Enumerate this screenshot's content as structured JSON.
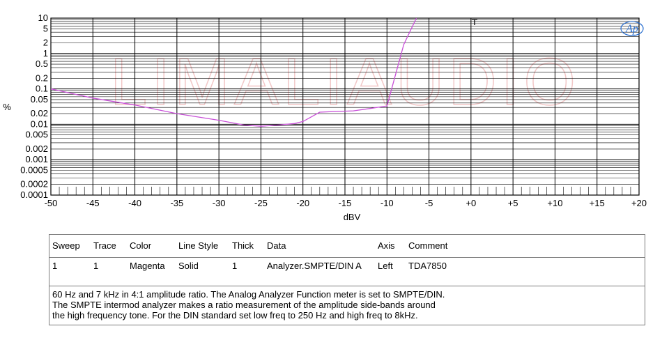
{
  "chart_data": {
    "type": "line",
    "xlabel": "dBV",
    "ylabel": "%",
    "y_scale": "log",
    "xlim": [
      -50,
      20
    ],
    "ylim": [
      0.0001,
      10
    ],
    "grid": true,
    "x_ticks": [
      "-50",
      "-45",
      "-40",
      "-35",
      "-30",
      "-25",
      "-20",
      "-15",
      "-10",
      "-5",
      "+0",
      "+5",
      "+10",
      "+15",
      "+20"
    ],
    "y_ticks": [
      "10",
      "5",
      "2",
      "1",
      "0.5",
      "0.2",
      "0.1",
      "0.05",
      "0.02",
      "0.01",
      "0.005",
      "0.002",
      "0.001",
      "0.0005",
      "0.0002",
      "0.0001"
    ],
    "watermark": "LIMALIAUDIO",
    "logo": "Ap",
    "series": [
      {
        "color": "#c84fd8",
        "x": [
          -50,
          -45,
          -40,
          -35,
          -30,
          -27,
          -25,
          -23,
          -21,
          -20,
          -18,
          -16,
          -14,
          -12,
          -10,
          -8,
          -6.5
        ],
        "y": [
          0.1,
          0.055,
          0.035,
          0.02,
          0.013,
          0.0095,
          0.0088,
          0.0095,
          0.0105,
          0.012,
          0.022,
          0.023,
          0.024,
          0.028,
          0.033,
          1.8,
          10
        ]
      }
    ]
  },
  "table": {
    "headers": [
      "Sweep",
      "Trace",
      "Color",
      "Line Style",
      "Thick",
      "Data",
      "Axis",
      "Comment"
    ],
    "row": [
      "1",
      "1",
      "Magenta",
      "Solid",
      "1",
      "Analyzer.SMPTE/DIN A",
      "Left",
      "TDA7850"
    ],
    "comment_lines": [
      "60 Hz and 7 kHz in 4:1 amplitude ratio.  The Analog Analyzer Function meter is set to SMPTE/DIN.",
      "The SMPTE intermod analyzer makes a ratio measurement of the amplitude side-bands around",
      "the high frequency tone.  For the DIN standard set low freq to 250 Hz and high freq to 8kHz."
    ]
  }
}
